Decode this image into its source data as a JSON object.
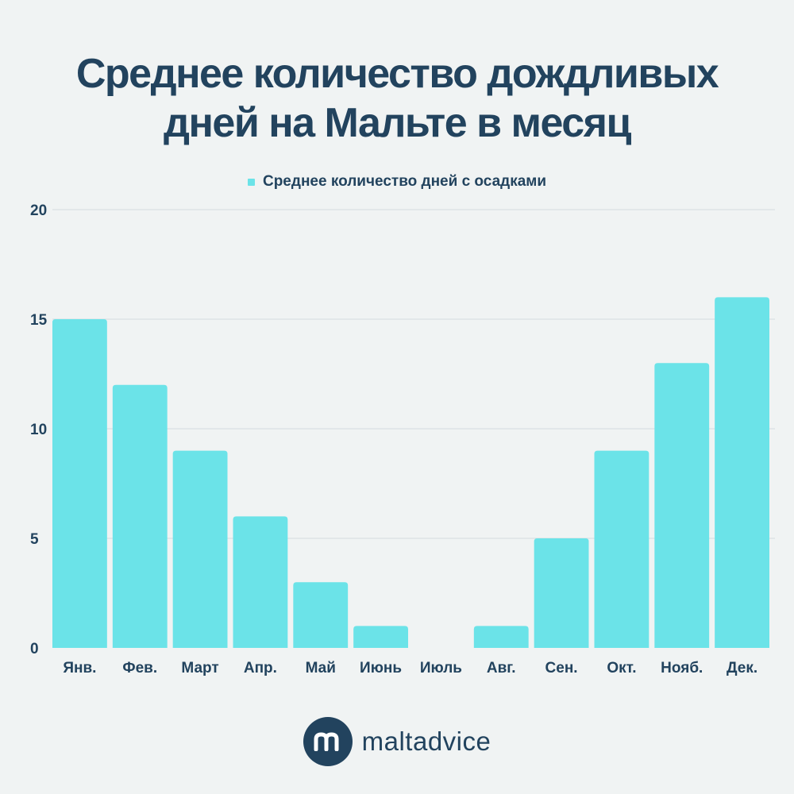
{
  "title_lines": [
    "Среднее количество дождливых",
    "дней на Мальте в месяц"
  ],
  "brand": {
    "name": "maltadvice",
    "icon": "maltadvice-logo-icon"
  },
  "colors": {
    "bar": "#6be3e8",
    "text": "#22435e",
    "grid": "#d3dbdf",
    "background": "#f0f3f3"
  },
  "chart_data": {
    "type": "bar",
    "title": "Среднее количество дождливых дней на Мальте в месяц",
    "xlabel": "",
    "ylabel": "",
    "categories": [
      "Янв.",
      "Фев.",
      "Март",
      "Апр.",
      "Май",
      "Июнь",
      "Июль",
      "Авг.",
      "Сен.",
      "Окт.",
      "Нояб.",
      "Дек."
    ],
    "series": [
      {
        "name": "Среднее количество дней с осадками",
        "values": [
          15,
          12,
          9,
          6,
          3,
          1,
          0,
          1,
          5,
          9,
          13,
          16
        ]
      }
    ],
    "ylim": [
      0,
      20
    ],
    "yticks": [
      0,
      5,
      10,
      15,
      20
    ],
    "grid": true,
    "legend_position": "top-center"
  }
}
